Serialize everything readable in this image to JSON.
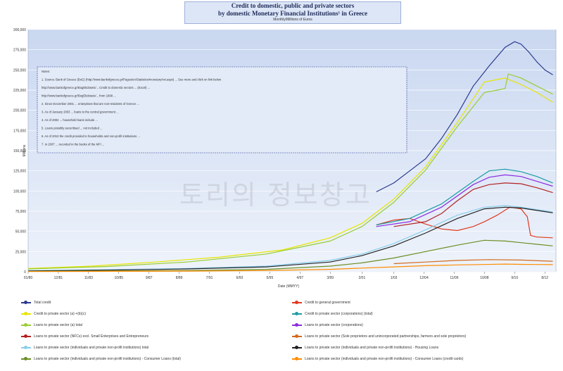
{
  "header": {
    "title_line1": "Credit to domestic, public and private sectors",
    "title_line2": "by domestic Monetary Financial Institutions¹ in Greece",
    "subtitle": "Monthly/Millions of Euros"
  },
  "watermark": "토리의 정보창고",
  "notes": [
    "Notes:",
    "1. Source: Bank of Greece (BoG) (http://www.bankofgreece.gr/Pages/en/Statistics/monetary/nxi.aspx) ... See more and click on link below",
    "http://www.bankofgreece.gr/BogEkdoseis/... Credit to domestic sectors ... (Excel) ...",
    "http://www.bankofgreece.gr/BogEkdoseis/... from 1998 ...",
    "2. Since December 2001 ... enterprises that are non-residents of Greece ...",
    "3. As of January 2003 ... loans to the central government ...",
    "4. As of 2002 ... household loans include ...",
    "5. Loans possibly securitised ... not included ...",
    "6. As of 2010 the credit provided to households and non-profit institutions ...",
    "7. In 2007 ... recorded in the books of the MFI ..."
  ],
  "chart_data": {
    "type": "line",
    "title": "Credit to domestic, public and private sectors by domestic Monetary Financial Institutions¹ in Greece",
    "subtitle": "Monthly/Millions of Euros",
    "xlabel": "Date (MMYY)",
    "ylabel": "Millions",
    "x_range": [
      1980,
      2013.2
    ],
    "ylim": [
      0,
      300000
    ],
    "x_ticks": [
      "01/80",
      "12/81",
      "11/83",
      "10/85",
      "9/87",
      "8/89",
      "7/91",
      "6/93",
      "5/95",
      "4/97",
      "3/99",
      "2/01",
      "1/03",
      "12/04",
      "11/06",
      "10/08",
      "9/10",
      "8/12"
    ],
    "x_tick_years": [
      1980,
      1981.9,
      1983.8,
      1985.7,
      1987.6,
      1989.5,
      1991.4,
      1993.3,
      1995.2,
      1997.1,
      1999,
      2001,
      2003,
      2004.9,
      2006.8,
      2008.7,
      2010.6,
      2012.5
    ],
    "y_ticks": [
      0,
      25000,
      50000,
      75000,
      100000,
      125000,
      150000,
      175000,
      200000,
      225000,
      250000,
      275000,
      300000
    ],
    "y_tick_labels": [
      "0",
      "25,000",
      "50,000",
      "75,000",
      "100,000",
      "125,000",
      "150,000",
      "175,000",
      "200,000",
      "225,000",
      "250,000",
      "275,000",
      "300,000"
    ],
    "grid": true,
    "legend_position": "bottom",
    "series": [
      {
        "name": "Total credit",
        "color": "#2b3a8f",
        "points": [
          [
            2001.9,
            99000
          ],
          [
            2003,
            110000
          ],
          [
            2004,
            125000
          ],
          [
            2005,
            140000
          ],
          [
            2006,
            165000
          ],
          [
            2007,
            195000
          ],
          [
            2008,
            230000
          ],
          [
            2009,
            255000
          ],
          [
            2010,
            278000
          ],
          [
            2010.6,
            285000
          ],
          [
            2011,
            282000
          ],
          [
            2011.5,
            272000
          ],
          [
            2012,
            260000
          ],
          [
            2012.5,
            250000
          ],
          [
            2013,
            244000
          ]
        ]
      },
      {
        "name": "Credit to general government",
        "color": "#e03a1e",
        "points": [
          [
            2001.9,
            58000
          ],
          [
            2003,
            64000
          ],
          [
            2004,
            66000
          ],
          [
            2005,
            59000
          ],
          [
            2006,
            53000
          ],
          [
            2007,
            51000
          ],
          [
            2008,
            56000
          ],
          [
            2008.7,
            62000
          ],
          [
            2009.5,
            70000
          ],
          [
            2010.3,
            80000
          ],
          [
            2011,
            78000
          ],
          [
            2011.4,
            68000
          ],
          [
            2011.6,
            45000
          ],
          [
            2012,
            43000
          ],
          [
            2013,
            42000
          ]
        ]
      },
      {
        "name": "Credit to private sector (a) +(b)(c)",
        "color": "#e6e600",
        "points": [
          [
            1980,
            4000
          ],
          [
            1984,
            7000
          ],
          [
            1988,
            12000
          ],
          [
            1992,
            18000
          ],
          [
            1996,
            27000
          ],
          [
            1999,
            42000
          ],
          [
            2001,
            60000
          ],
          [
            2003,
            90000
          ],
          [
            2005,
            130000
          ],
          [
            2007,
            185000
          ],
          [
            2008.7,
            235000
          ],
          [
            2010,
            240000
          ],
          [
            2011,
            232000
          ],
          [
            2012,
            222000
          ],
          [
            2013,
            210000
          ]
        ]
      },
      {
        "name": "Credit to private sector (corporations) (total)",
        "color": "#1f9aa6",
        "points": [
          [
            2001.9,
            58000
          ],
          [
            2004,
            66000
          ],
          [
            2006,
            84000
          ],
          [
            2008,
            112000
          ],
          [
            2009,
            125000
          ],
          [
            2010,
            127000
          ],
          [
            2011,
            124000
          ],
          [
            2012,
            118000
          ],
          [
            2013,
            110000
          ]
        ]
      },
      {
        "name": "Loans to private sector (a) total",
        "color": "#9acd32",
        "points": [
          [
            1980,
            3500
          ],
          [
            1985,
            6500
          ],
          [
            1990,
            12000
          ],
          [
            1995,
            22000
          ],
          [
            1999,
            38000
          ],
          [
            2001,
            56000
          ],
          [
            2003,
            86000
          ],
          [
            2005,
            126000
          ],
          [
            2007,
            180000
          ],
          [
            2008.7,
            222000
          ],
          [
            2009.5,
            225000
          ],
          [
            2010,
            227000
          ],
          [
            2010.2,
            245000
          ],
          [
            2011,
            240000
          ],
          [
            2012,
            230000
          ],
          [
            2013,
            220000
          ]
        ]
      },
      {
        "name": "Loans to private sector (corporations)",
        "color": "#8a2be2",
        "points": [
          [
            2001.9,
            56000
          ],
          [
            2004,
            62000
          ],
          [
            2006,
            80000
          ],
          [
            2008,
            108000
          ],
          [
            2009,
            117000
          ],
          [
            2010,
            120000
          ],
          [
            2011,
            118000
          ],
          [
            2012,
            112000
          ],
          [
            2013,
            106000
          ]
        ]
      },
      {
        "name": "Loans to private sector (NFCs) excl. Small Enterprises and Entrepreneurs",
        "color": "#b22222",
        "points": [
          [
            2003,
            56000
          ],
          [
            2005,
            62000
          ],
          [
            2006,
            72000
          ],
          [
            2007,
            88000
          ],
          [
            2008,
            102000
          ],
          [
            2009,
            108000
          ],
          [
            2010,
            110000
          ],
          [
            2011,
            109000
          ],
          [
            2012,
            104000
          ],
          [
            2013,
            98000
          ]
        ]
      },
      {
        "name": "Loans to private sector (Sole proprietors and unincorporated partnerships, farmers and sole proprietors)",
        "color": "#d2691e",
        "points": [
          [
            2003,
            10000
          ],
          [
            2005,
            12000
          ],
          [
            2007,
            14000
          ],
          [
            2009,
            15000
          ],
          [
            2011,
            14500
          ],
          [
            2013,
            13000
          ]
        ]
      },
      {
        "name": "Loans to private sector (individuals and private non-profit institutions) total",
        "color": "#87ceeb",
        "points": [
          [
            1980,
            1500
          ],
          [
            1985,
            2500
          ],
          [
            1990,
            4000
          ],
          [
            1995,
            7000
          ],
          [
            1999,
            14000
          ],
          [
            2001,
            22000
          ],
          [
            2003,
            35000
          ],
          [
            2005,
            52000
          ],
          [
            2007,
            70000
          ],
          [
            2008.7,
            80000
          ],
          [
            2010,
            82000
          ],
          [
            2011,
            80000
          ],
          [
            2012,
            77000
          ],
          [
            2013,
            74000
          ]
        ]
      },
      {
        "name": "Loans to private sector (individuals and private non-profit institutions) - Housing Loans",
        "color": "#222222",
        "points": [
          [
            1980,
            1000
          ],
          [
            1985,
            2000
          ],
          [
            1990,
            3500
          ],
          [
            1995,
            6000
          ],
          [
            1999,
            12000
          ],
          [
            2001,
            20000
          ],
          [
            2003,
            32000
          ],
          [
            2005,
            48000
          ],
          [
            2007,
            66000
          ],
          [
            2008.7,
            78000
          ],
          [
            2010,
            80000
          ],
          [
            2011,
            79000
          ],
          [
            2012,
            76000
          ],
          [
            2013,
            73000
          ]
        ]
      },
      {
        "name": "Loans to private sector (individuals and private non-profit institutions) - Consumer Loans (total)",
        "color": "#6b8e23",
        "points": [
          [
            1980,
            500
          ],
          [
            1990,
            1500
          ],
          [
            1995,
            3000
          ],
          [
            1999,
            7000
          ],
          [
            2001,
            11000
          ],
          [
            2003,
            17000
          ],
          [
            2005,
            25000
          ],
          [
            2007,
            33000
          ],
          [
            2008.7,
            39000
          ],
          [
            2010,
            38000
          ],
          [
            2011,
            36000
          ],
          [
            2012,
            34000
          ],
          [
            2013,
            32000
          ]
        ]
      },
      {
        "name": "Loans to private sector (individuals and private non-profit institutions) - Consumer Loans (credit cards)",
        "color": "#ff8c00",
        "points": [
          [
            1980,
            300
          ],
          [
            1990,
            800
          ],
          [
            1995,
            1500
          ],
          [
            1999,
            3000
          ],
          [
            2001,
            4500
          ],
          [
            2003,
            6000
          ],
          [
            2005,
            7500
          ],
          [
            2007,
            8500
          ],
          [
            2008.7,
            9000
          ],
          [
            2010,
            9500
          ],
          [
            2011,
            9200
          ],
          [
            2012,
            9000
          ],
          [
            2013,
            8800
          ]
        ]
      }
    ]
  }
}
